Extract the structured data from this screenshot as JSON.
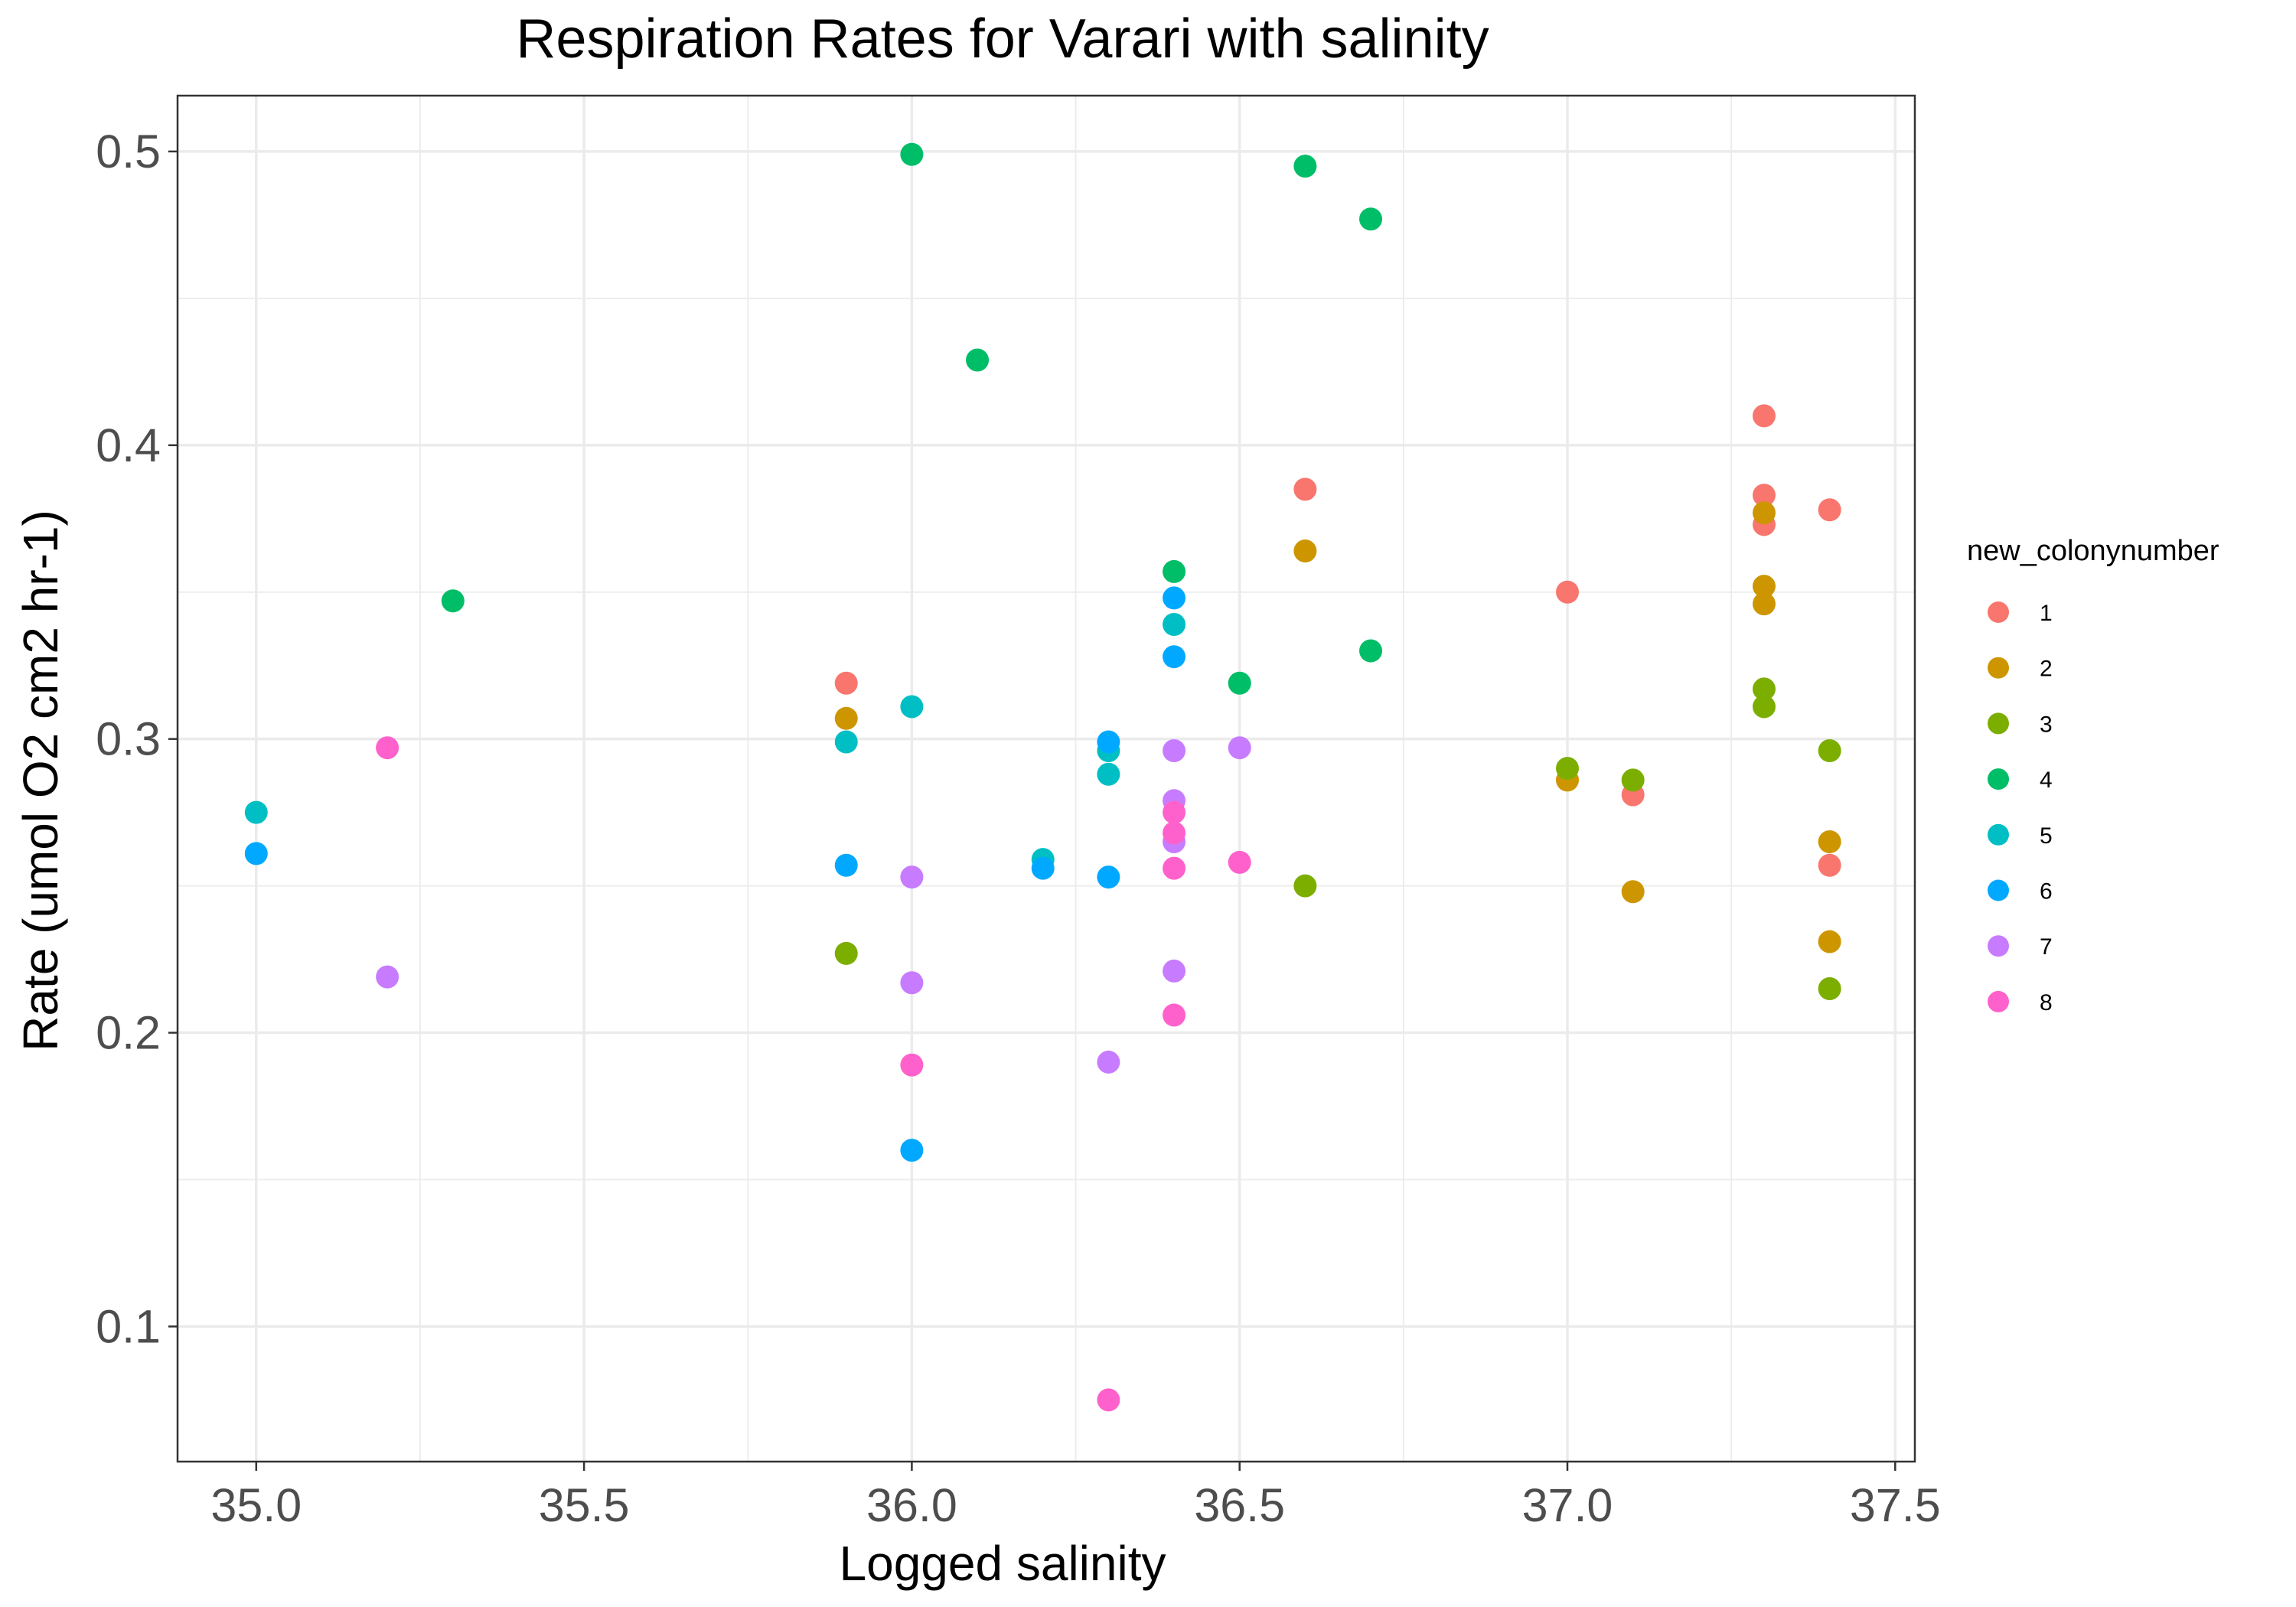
{
  "chart_data": {
    "type": "scatter",
    "title": "Respiration Rates for Varari with salinity",
    "xlabel": "Logged salinity",
    "ylabel": "Rate (umol O2 cm2 hr-1)",
    "xlim": [
      34.88,
      37.53
    ],
    "ylim": [
      0.054,
      0.519
    ],
    "x_ticks": [
      35.0,
      35.5,
      36.0,
      36.5,
      37.0,
      37.5
    ],
    "x_tick_labels": [
      "35.0",
      "35.5",
      "36.0",
      "36.5",
      "37.0",
      "37.5"
    ],
    "y_ticks": [
      0.1,
      0.2,
      0.3,
      0.4,
      0.5
    ],
    "y_tick_labels": [
      "0.1",
      "0.2",
      "0.3",
      "0.4",
      "0.5"
    ],
    "grid": true,
    "legend_title": "new_colonynumber",
    "legend_position": "right",
    "series": [
      {
        "name": "1",
        "color": "#F8766D",
        "points": [
          [
            35.9,
            0.319
          ],
          [
            36.6,
            0.385
          ],
          [
            37.0,
            0.35
          ],
          [
            37.1,
            0.281
          ],
          [
            37.3,
            0.41
          ],
          [
            37.3,
            0.383
          ],
          [
            37.3,
            0.373
          ],
          [
            37.4,
            0.378
          ],
          [
            37.4,
            0.257
          ]
        ]
      },
      {
        "name": "2",
        "color": "#CD9600",
        "points": [
          [
            35.9,
            0.307
          ],
          [
            36.6,
            0.364
          ],
          [
            37.0,
            0.286
          ],
          [
            37.1,
            0.248
          ],
          [
            37.3,
            0.377
          ],
          [
            37.3,
            0.352
          ],
          [
            37.3,
            0.346
          ],
          [
            37.4,
            0.265
          ],
          [
            37.4,
            0.231
          ]
        ]
      },
      {
        "name": "3",
        "color": "#7CAE00",
        "points": [
          [
            35.9,
            0.227
          ],
          [
            36.6,
            0.25
          ],
          [
            37.0,
            0.29
          ],
          [
            37.1,
            0.286
          ],
          [
            37.3,
            0.317
          ],
          [
            37.3,
            0.311
          ],
          [
            37.4,
            0.296
          ],
          [
            37.4,
            0.215
          ]
        ]
      },
      {
        "name": "4",
        "color": "#00BE67",
        "points": [
          [
            35.3,
            0.347
          ],
          [
            36.0,
            0.499
          ],
          [
            36.1,
            0.429
          ],
          [
            36.4,
            0.357
          ],
          [
            36.5,
            0.319
          ],
          [
            36.6,
            0.495
          ],
          [
            36.7,
            0.477
          ],
          [
            36.7,
            0.33
          ]
        ]
      },
      {
        "name": "5",
        "color": "#00BFC4",
        "points": [
          [
            35.0,
            0.275
          ],
          [
            35.9,
            0.299
          ],
          [
            36.0,
            0.311
          ],
          [
            36.2,
            0.259
          ],
          [
            36.3,
            0.296
          ],
          [
            36.3,
            0.288
          ],
          [
            36.4,
            0.339
          ]
        ]
      },
      {
        "name": "6",
        "color": "#00A9FF",
        "points": [
          [
            35.0,
            0.261
          ],
          [
            35.9,
            0.257
          ],
          [
            36.0,
            0.16
          ],
          [
            36.2,
            0.256
          ],
          [
            36.3,
            0.299
          ],
          [
            36.3,
            0.253
          ],
          [
            36.4,
            0.348
          ],
          [
            36.4,
            0.328
          ]
        ]
      },
      {
        "name": "7",
        "color": "#C77CFF",
        "points": [
          [
            35.2,
            0.219
          ],
          [
            36.0,
            0.253
          ],
          [
            36.0,
            0.217
          ],
          [
            36.3,
            0.19
          ],
          [
            36.4,
            0.296
          ],
          [
            36.4,
            0.279
          ],
          [
            36.4,
            0.265
          ],
          [
            36.4,
            0.221
          ],
          [
            36.5,
            0.297
          ]
        ]
      },
      {
        "name": "8",
        "color": "#FF61CC",
        "points": [
          [
            35.2,
            0.297
          ],
          [
            36.0,
            0.189
          ],
          [
            36.3,
            0.075
          ],
          [
            36.4,
            0.275
          ],
          [
            36.4,
            0.268
          ],
          [
            36.4,
            0.256
          ],
          [
            36.4,
            0.206
          ],
          [
            36.5,
            0.258
          ]
        ]
      }
    ]
  }
}
